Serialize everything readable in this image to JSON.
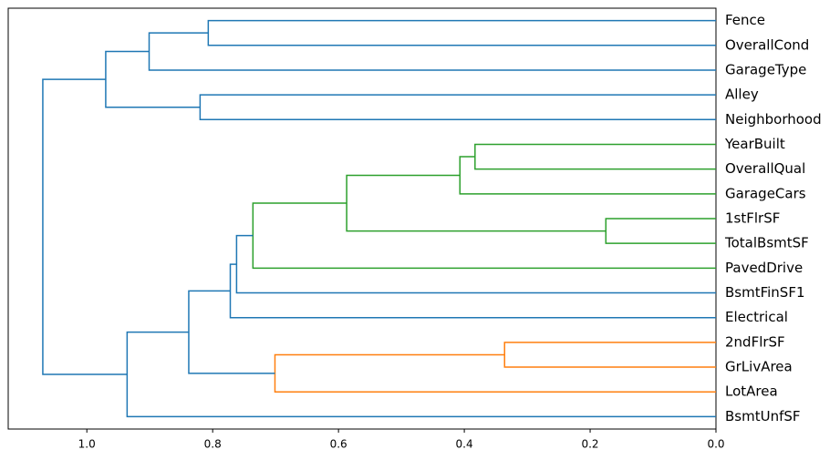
{
  "chart_data": {
    "type": "dendrogram",
    "orientation": "left",
    "xlim": [
      1.125,
      0
    ],
    "xticks": [
      {
        "value": 1,
        "label": "1.0"
      },
      0.8,
      0.6,
      0.4,
      0.2,
      {
        "value": 0,
        "label": "0.0"
      }
    ],
    "tree": {
      "height": 1.07,
      "color": "#1f77b4",
      "children": [
        {
          "height": 0.97,
          "color": "#1f77b4",
          "children": [
            {
              "height": 0.901,
              "color": "#1f77b4",
              "children": [
                {
                  "height": 0.807,
                  "color": "#1f77b4",
                  "children": [
                    {
                      "label": "Fence"
                    },
                    {
                      "label": "OverallCond"
                    }
                  ]
                },
                {
                  "label": "GarageType"
                }
              ]
            },
            {
              "height": 0.82,
              "color": "#1f77b4",
              "children": [
                {
                  "label": "Alley"
                },
                {
                  "label": "Neighborhood"
                }
              ]
            }
          ]
        },
        {
          "height": 0.936,
          "color": "#1f77b4",
          "children": [
            {
              "height": 0.838,
              "color": "#1f77b4",
              "children": [
                {
                  "height": 0.772,
                  "color": "#1f77b4",
                  "children": [
                    {
                      "height": 0.762,
                      "color": "#1f77b4",
                      "children": [
                        {
                          "height": 0.736,
                          "color": "#2ca02c",
                          "children": [
                            {
                              "height": 0.587,
                              "color": "#2ca02c",
                              "children": [
                                {
                                  "height": 0.407,
                                  "color": "#2ca02c",
                                  "children": [
                                    {
                                      "height": 0.383,
                                      "color": "#2ca02c",
                                      "children": [
                                        {
                                          "label": "YearBuilt"
                                        },
                                        {
                                          "label": "OverallQual"
                                        }
                                      ]
                                    },
                                    {
                                      "label": "GarageCars"
                                    }
                                  ]
                                },
                                {
                                  "height": 0.175,
                                  "color": "#2ca02c",
                                  "children": [
                                    {
                                      "label": "1stFlrSF"
                                    },
                                    {
                                      "label": "TotalBsmtSF"
                                    }
                                  ]
                                }
                              ]
                            },
                            {
                              "label": "PavedDrive"
                            }
                          ]
                        },
                        {
                          "label": "BsmtFinSF1"
                        }
                      ]
                    },
                    {
                      "label": "Electrical"
                    }
                  ]
                },
                {
                  "height": 0.701,
                  "color": "#ff7f0e",
                  "children": [
                    {
                      "height": 0.336,
                      "color": "#ff7f0e",
                      "children": [
                        {
                          "label": "2ndFlrSF"
                        },
                        {
                          "label": "GrLivArea"
                        }
                      ]
                    },
                    {
                      "label": "LotArea"
                    }
                  ]
                }
              ]
            },
            {
              "label": "BsmtUnfSF"
            }
          ]
        }
      ]
    }
  }
}
